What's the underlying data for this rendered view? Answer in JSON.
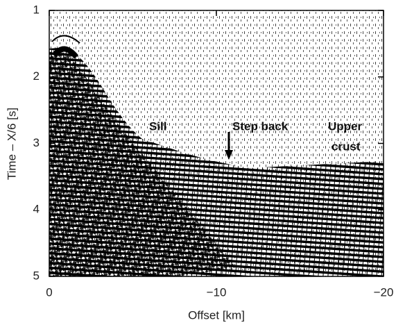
{
  "chart_data": {
    "type": "seismic-section",
    "x_label": "Offset [km]",
    "y_label": "Time – X/6 [s]",
    "xlim": [
      0,
      -20
    ],
    "xticks": [
      0,
      {
        "value": -10,
        "label": "−10"
      },
      {
        "value": -20,
        "label": "−20"
      }
    ],
    "ylim": [
      1,
      5
    ],
    "y_inverted": true,
    "yticks": [
      1,
      2,
      3,
      4,
      5
    ],
    "annotations": [
      "Sill",
      "Step back",
      "Upper",
      "crust"
    ]
  }
}
